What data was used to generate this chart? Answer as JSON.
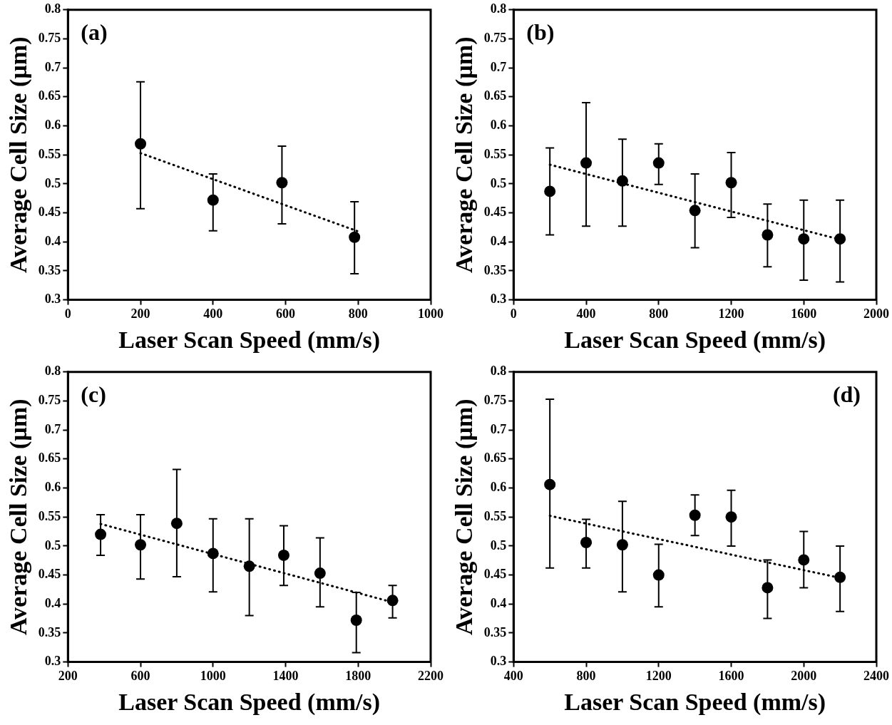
{
  "chart_data": [
    {
      "type": "scatter",
      "xlabel": "Laser Scan Speed (mm/s)",
      "ylabel": "Average Cell Size (µm)",
      "annotations": [
        "(a)"
      ],
      "xlim": [
        0,
        1000
      ],
      "xticks": [
        0,
        200,
        400,
        600,
        800,
        1000
      ],
      "ylim": [
        0.3,
        0.8
      ],
      "yticks": [
        0.3,
        0.35,
        0.4,
        0.45,
        0.5,
        0.55,
        0.6,
        0.65,
        0.7,
        0.75,
        0.8
      ],
      "grid": false,
      "legend": false,
      "series": [
        {
          "type": "scatter",
          "color": "#000000",
          "marker": "circle",
          "x": [
            200,
            400,
            590,
            790
          ],
          "values": [
            0.569,
            0.472,
            0.502,
            0.408
          ],
          "errors": [
            [
              0.457,
              0.676
            ],
            [
              0.419,
              0.517
            ],
            [
              0.431,
              0.565
            ],
            [
              0.345,
              0.469
            ]
          ]
        },
        {
          "type": "line",
          "color": "#000000",
          "marker": "none",
          "line_style": "dotted",
          "x": [
            200,
            800
          ],
          "values": [
            0.553,
            0.418
          ]
        }
      ]
    },
    {
      "type": "scatter",
      "xlabel": "Laser Scan Speed (mm/s)",
      "ylabel": "Average Cell Size (µm)",
      "annotations": [
        "(b)"
      ],
      "xlim": [
        0,
        2000
      ],
      "xticks": [
        0,
        400,
        800,
        1200,
        1600,
        2000
      ],
      "ylim": [
        0.3,
        0.8
      ],
      "yticks": [
        0.3,
        0.35,
        0.4,
        0.45,
        0.5,
        0.55,
        0.6,
        0.65,
        0.7,
        0.75,
        0.8
      ],
      "grid": false,
      "legend": false,
      "series": [
        {
          "type": "scatter",
          "color": "#000000",
          "marker": "circle",
          "x": [
            200,
            400,
            600,
            800,
            1000,
            1200,
            1400,
            1600,
            1800
          ],
          "values": [
            0.487,
            0.536,
            0.505,
            0.536,
            0.454,
            0.502,
            0.412,
            0.405,
            0.405
          ],
          "errors": [
            [
              0.412,
              0.562
            ],
            [
              0.427,
              0.64
            ],
            [
              0.427,
              0.577
            ],
            [
              0.499,
              0.569
            ],
            [
              0.39,
              0.517
            ],
            [
              0.442,
              0.554
            ],
            [
              0.357,
              0.465
            ],
            [
              0.334,
              0.472
            ],
            [
              0.331,
              0.472
            ]
          ]
        },
        {
          "type": "line",
          "color": "#000000",
          "marker": "none",
          "line_style": "dotted",
          "x": [
            200,
            1800
          ],
          "values": [
            0.533,
            0.404
          ]
        }
      ]
    },
    {
      "type": "scatter",
      "xlabel": "Laser Scan Speed (mm/s)",
      "ylabel": "Average Cell Size (µm)",
      "annotations": [
        "(c)"
      ],
      "xlim": [
        200,
        2200
      ],
      "xticks": [
        200,
        600,
        1000,
        1400,
        1800,
        2200
      ],
      "ylim": [
        0.3,
        0.8
      ],
      "yticks": [
        0.3,
        0.35,
        0.4,
        0.45,
        0.5,
        0.55,
        0.6,
        0.65,
        0.7,
        0.75,
        0.8
      ],
      "grid": false,
      "legend": false,
      "series": [
        {
          "type": "scatter",
          "color": "#000000",
          "marker": "circle",
          "x": [
            380,
            600,
            800,
            1000,
            1200,
            1390,
            1590,
            1790,
            1990
          ],
          "values": [
            0.52,
            0.502,
            0.539,
            0.487,
            0.465,
            0.484,
            0.453,
            0.372,
            0.406
          ],
          "errors": [
            [
              0.484,
              0.554
            ],
            [
              0.443,
              0.554
            ],
            [
              0.447,
              0.632
            ],
            [
              0.421,
              0.547
            ],
            [
              0.38,
              0.547
            ],
            [
              0.432,
              0.535
            ],
            [
              0.395,
              0.514
            ],
            [
              0.316,
              0.42
            ],
            [
              0.376,
              0.432
            ]
          ]
        },
        {
          "type": "line",
          "color": "#000000",
          "marker": "none",
          "line_style": "dotted",
          "x": [
            380,
            1990
          ],
          "values": [
            0.538,
            0.403
          ]
        }
      ]
    },
    {
      "type": "scatter",
      "xlabel": "Laser Scan Speed (mm/s)",
      "ylabel": "Average Cell Size (µm)",
      "annotations": [
        "(d)"
      ],
      "xlim": [
        400,
        2400
      ],
      "xticks": [
        400,
        800,
        1200,
        1600,
        2000,
        2400
      ],
      "ylim": [
        0.3,
        0.8
      ],
      "yticks": [
        0.3,
        0.35,
        0.4,
        0.45,
        0.5,
        0.55,
        0.6,
        0.65,
        0.7,
        0.75,
        0.8
      ],
      "grid": false,
      "legend": false,
      "series": [
        {
          "type": "scatter",
          "color": "#000000",
          "marker": "circle",
          "x": [
            600,
            800,
            1000,
            1200,
            1400,
            1600,
            1800,
            2000,
            2200
          ],
          "values": [
            0.606,
            0.506,
            0.502,
            0.45,
            0.553,
            0.55,
            0.428,
            0.476,
            0.446
          ],
          "errors": [
            [
              0.462,
              0.753
            ],
            [
              0.462,
              0.546
            ],
            [
              0.421,
              0.577
            ],
            [
              0.395,
              0.503
            ],
            [
              0.518,
              0.588
            ],
            [
              0.5,
              0.596
            ],
            [
              0.375,
              0.476
            ],
            [
              0.428,
              0.525
            ],
            [
              0.387,
              0.5
            ]
          ]
        },
        {
          "type": "line",
          "color": "#000000",
          "marker": "none",
          "line_style": "dotted",
          "x": [
            600,
            2200
          ],
          "values": [
            0.552,
            0.445
          ]
        }
      ]
    }
  ]
}
